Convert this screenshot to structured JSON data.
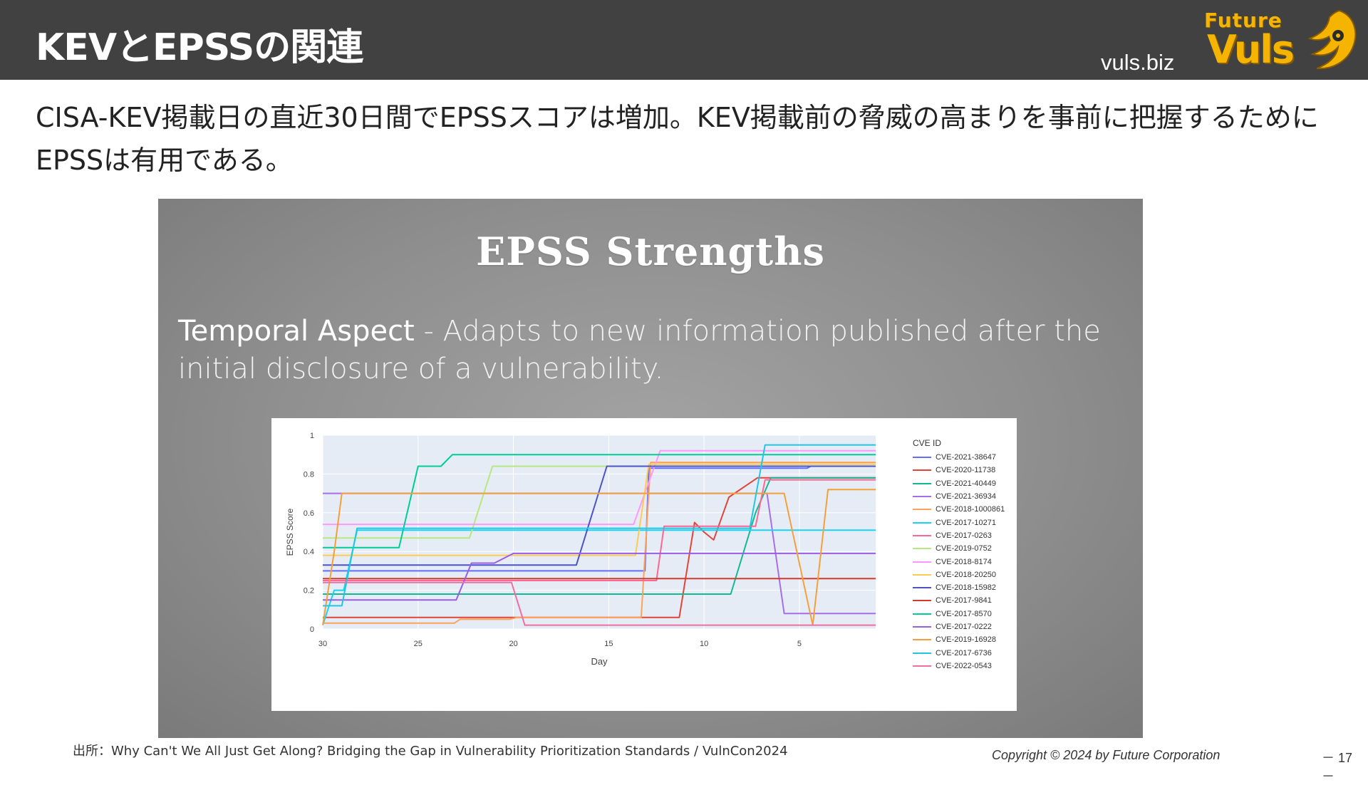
{
  "header": {
    "title": "KEVとEPSSの関連",
    "site": "vuls.biz",
    "logo": {
      "line1": "Future",
      "line2": "Vuls"
    }
  },
  "subtitle": "CISA-KEV掲載日の直近30日間でEPSSスコアは増加。KEV掲載前の脅威の高まりを事前に把握するためにEPSSは有用である。",
  "embed": {
    "title": "EPSS Strengths",
    "body_lead": "Temporal Aspect",
    "body_rest": " - Adapts to new information published after the initial disclosure of a vulnerability."
  },
  "footer": {
    "source": "出所：Why Can't We All Just Get Along? Bridging the Gap in Vulnerability Prioritization Standards / VulnCon2024",
    "copyright": "Copyright © 2024 by Future  Corporation",
    "page": "－ 17 －"
  },
  "chart_data": {
    "type": "line",
    "xlabel": "Day",
    "ylabel": "EPSS Score",
    "x_reversed": true,
    "xlim": [
      30,
      1
    ],
    "ylim": [
      0,
      1
    ],
    "x_ticks": [
      30,
      25,
      20,
      15,
      10,
      5
    ],
    "y_ticks": [
      0,
      0.2,
      0.4,
      0.6,
      0.8,
      1
    ],
    "y_tick_labels": [
      "0",
      "0.2",
      "0.4",
      "0.6",
      "0.8",
      "1"
    ],
    "legend_title": "CVE ID",
    "legend_position": "right",
    "grid": true,
    "series": [
      {
        "name": "CVE-2021-38647",
        "color": "#636efa",
        "points": [
          [
            30,
            0.3
          ],
          [
            16,
            0.3
          ],
          [
            13.1,
            0.3
          ],
          [
            12.9,
            0.83
          ],
          [
            4.6,
            0.83
          ],
          [
            4.4,
            0.84
          ],
          [
            1,
            0.84
          ]
        ]
      },
      {
        "name": "CVE-2020-11738",
        "color": "#e0453a",
        "points": [
          [
            30,
            0.06
          ],
          [
            13,
            0.06
          ],
          [
            11.3,
            0.06
          ],
          [
            10.5,
            0.55
          ],
          [
            10,
            0.5
          ],
          [
            9.5,
            0.46
          ],
          [
            8.7,
            0.68
          ],
          [
            7.2,
            0.78
          ],
          [
            5.7,
            0.78
          ],
          [
            1,
            0.78
          ]
        ]
      },
      {
        "name": "CVE-2021-40449",
        "color": "#14b892",
        "points": [
          [
            30,
            0.18
          ],
          [
            17,
            0.18
          ],
          [
            8.6,
            0.18
          ],
          [
            7.3,
            0.6
          ],
          [
            6.5,
            0.78
          ],
          [
            1,
            0.78
          ]
        ]
      },
      {
        "name": "CVE-2021-36934",
        "color": "#a86de8",
        "points": [
          [
            30,
            0.7
          ],
          [
            6.7,
            0.7
          ],
          [
            5.8,
            0.08
          ],
          [
            1,
            0.08
          ]
        ]
      },
      {
        "name": "CVE-2018-1000861",
        "color": "#ffa15a",
        "points": [
          [
            30,
            0.03
          ],
          [
            23.1,
            0.03
          ],
          [
            22.8,
            0.05
          ],
          [
            20.2,
            0.05
          ],
          [
            19.8,
            0.06
          ],
          [
            13.3,
            0.06
          ],
          [
            12.8,
            0.86
          ],
          [
            1,
            0.86
          ]
        ]
      },
      {
        "name": "CVE-2017-10271",
        "color": "#19d3f3",
        "points": [
          [
            30,
            0.02
          ],
          [
            29.4,
            0.2
          ],
          [
            28.9,
            0.2
          ],
          [
            28.2,
            0.51
          ],
          [
            1,
            0.51
          ]
        ]
      },
      {
        "name": "CVE-2017-0263",
        "color": "#ff6692",
        "points": [
          [
            30,
            0.25
          ],
          [
            12.5,
            0.25
          ],
          [
            12.1,
            0.53
          ],
          [
            7.3,
            0.53
          ],
          [
            6.8,
            0.77
          ],
          [
            1,
            0.77
          ]
        ]
      },
      {
        "name": "CVE-2019-0752",
        "color": "#b6e880",
        "points": [
          [
            30,
            0.47
          ],
          [
            22.3,
            0.47
          ],
          [
            21.1,
            0.84
          ],
          [
            1,
            0.84
          ]
        ]
      },
      {
        "name": "CVE-2018-8174",
        "color": "#ff97ff",
        "points": [
          [
            30,
            0.54
          ],
          [
            13.7,
            0.54
          ],
          [
            12.3,
            0.92
          ],
          [
            1,
            0.92
          ]
        ]
      },
      {
        "name": "CVE-2018-20250",
        "color": "#fecb52",
        "points": [
          [
            30,
            0.38
          ],
          [
            13.6,
            0.38
          ],
          [
            12.9,
            0.85
          ],
          [
            1,
            0.85
          ]
        ]
      },
      {
        "name": "CVE-2018-15982",
        "color": "#4b53c7",
        "points": [
          [
            30,
            0.33
          ],
          [
            16.7,
            0.33
          ],
          [
            15.1,
            0.84
          ],
          [
            1,
            0.84
          ]
        ]
      },
      {
        "name": "CVE-2017-9841",
        "color": "#d43a2c",
        "points": [
          [
            30,
            0.26
          ],
          [
            1,
            0.26
          ]
        ]
      },
      {
        "name": "CVE-2017-8570",
        "color": "#00cc96",
        "points": [
          [
            30,
            0.42
          ],
          [
            26,
            0.42
          ],
          [
            25,
            0.84
          ],
          [
            23.8,
            0.84
          ],
          [
            23.2,
            0.9
          ],
          [
            1,
            0.9
          ]
        ]
      },
      {
        "name": "CVE-2017-0222",
        "color": "#9b5de5",
        "points": [
          [
            30,
            0.15
          ],
          [
            23,
            0.15
          ],
          [
            22.2,
            0.34
          ],
          [
            21,
            0.34
          ],
          [
            20,
            0.39
          ],
          [
            1,
            0.39
          ]
        ]
      },
      {
        "name": "CVE-2019-16928",
        "color": "#f4a03a",
        "points": [
          [
            30,
            0.02
          ],
          [
            29.4,
            0.4
          ],
          [
            29,
            0.7
          ],
          [
            7,
            0.7
          ],
          [
            5.8,
            0.7
          ],
          [
            4.3,
            0.02
          ],
          [
            3.5,
            0.72
          ],
          [
            1,
            0.72
          ]
        ]
      },
      {
        "name": "CVE-2017-6736",
        "color": "#22c6e0",
        "points": [
          [
            30,
            0.12
          ],
          [
            29,
            0.12
          ],
          [
            28.2,
            0.52
          ],
          [
            7.6,
            0.52
          ],
          [
            6.8,
            0.95
          ],
          [
            1,
            0.95
          ]
        ]
      },
      {
        "name": "CVE-2022-0543",
        "color": "#f06fa2",
        "points": [
          [
            30,
            0.24
          ],
          [
            20.1,
            0.24
          ],
          [
            19.4,
            0.02
          ],
          [
            1,
            0.02
          ]
        ]
      }
    ]
  }
}
